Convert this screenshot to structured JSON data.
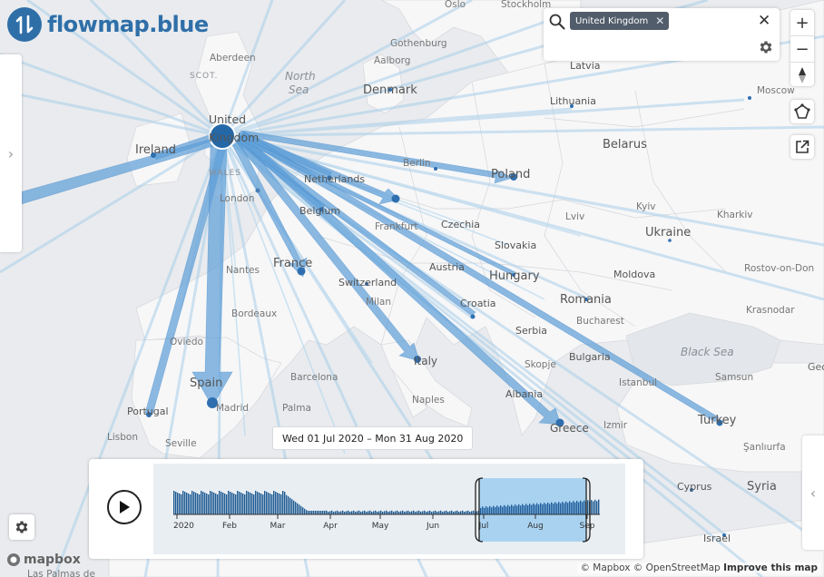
{
  "app": {
    "name": "flowmap.blue",
    "brand_color": "#2f6fa8"
  },
  "search": {
    "selected_chip": "United Kingdom",
    "chip_remove_icon": "close-icon",
    "clear_icon": "close-icon",
    "settings_icon": "gear-icon"
  },
  "map_controls": {
    "zoom_in": "+",
    "zoom_out": "−",
    "compass_icon": "compass-icon",
    "select_area_icon": "pentagon-icon",
    "share_icon": "external-link-icon"
  },
  "left_toggle": "›",
  "right_toggle": "‹",
  "date_range": "Wed 01 Jul 2020 – Mon 31 Aug 2020",
  "timeline": {
    "months": [
      "2020",
      "Feb",
      "Mar",
      "Apr",
      "May",
      "Jun",
      "Jul",
      "Aug",
      "Sep"
    ],
    "selected_months": [
      "Jul",
      "Aug"
    ],
    "play_icon": "play-icon"
  },
  "attribution": {
    "mapbox": "© Mapbox",
    "osm": "© OpenStreetMap",
    "improve": "Improve this map"
  },
  "mapbox_logo_text": "mapbox",
  "map_labels": {
    "countries": [
      "United Kingdom",
      "Ireland",
      "Denmark",
      "Netherlands",
      "Belgium",
      "France",
      "Spain",
      "Portugal",
      "Italy",
      "Greece",
      "Turkey",
      "Syria",
      "Poland",
      "Belarus",
      "Ukraine",
      "Lithuania",
      "Latvia",
      "Czechia",
      "Slovakia",
      "Austria",
      "Hungary",
      "Switzerland",
      "Croatia",
      "Serbia",
      "Romania",
      "Bulgaria",
      "Moldova",
      "Albania",
      "Cyprus",
      "Israel"
    ],
    "cities": [
      "Oslo",
      "Stockholm",
      "Gothenburg",
      "Aalborg",
      "Aberdeen",
      "Berlin",
      "Frankfurt",
      "London",
      "Nantes",
      "Bordeaux",
      "Oviedo",
      "Barcelona",
      "Madrid",
      "Lisbon",
      "Seville",
      "Palma",
      "Milan",
      "Naples",
      "Bucharest",
      "Skopje",
      "Istanbul",
      "Izmir",
      "Samsun",
      "Şanlıurfa",
      "Moscow",
      "Kyiv",
      "Kharkiv",
      "Lviv",
      "Krasnodar",
      "Rostov-on-Don",
      "Las Palmas de"
    ],
    "regions": [
      "North Sea",
      "Black Sea",
      "SCOT.",
      "WALES",
      "Geo"
    ]
  }
}
